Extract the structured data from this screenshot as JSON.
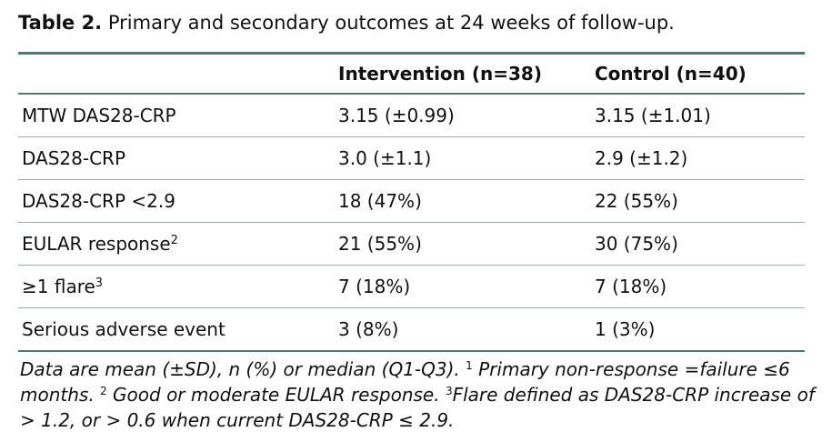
{
  "caption": {
    "label": "Table 2.",
    "text": "Primary and secondary outcomes at 24 weeks of follow-up."
  },
  "table": {
    "headers": [
      "",
      "Intervention (n=38)",
      "Control (n=40)"
    ],
    "rows": [
      {
        "outcome": "MTW DAS28-CRP",
        "sup": "",
        "intervention": "3.15 (±0.99)",
        "control": "3.15 (±1.01)"
      },
      {
        "outcome": "DAS28-CRP",
        "sup": "",
        "intervention": "3.0 (±1.1)",
        "control": "2.9 (±1.2)"
      },
      {
        "outcome": "DAS28-CRP <2.9",
        "sup": "",
        "intervention": "18 (47%)",
        "control": "22 (55%)"
      },
      {
        "outcome": "EULAR response",
        "sup": "2",
        "intervention": "21 (55%)",
        "control": "30 (75%)"
      },
      {
        "outcome": "≥1 flare",
        "sup": "3",
        "intervention": "7 (18%)",
        "control": "7 (18%)"
      },
      {
        "outcome": "Serious adverse event",
        "sup": "",
        "intervention": "3 (8%)",
        "control": "1 (3%)"
      }
    ]
  },
  "footnote": {
    "lead": "Data are mean (±SD), n (%) or median (Q1-Q3). ",
    "n1_sup": "1",
    "n1_text": " Primary non-response =failure ≤6 months. ",
    "n2_sup": "2",
    "n2_text": " Good or moderate EULAR response. ",
    "n3_sup": "3",
    "n3_text": "Flare defined as DAS28-CRP increase of > 1.2, or > 0.6 when current DAS28-CRP ≤ 2.9."
  }
}
